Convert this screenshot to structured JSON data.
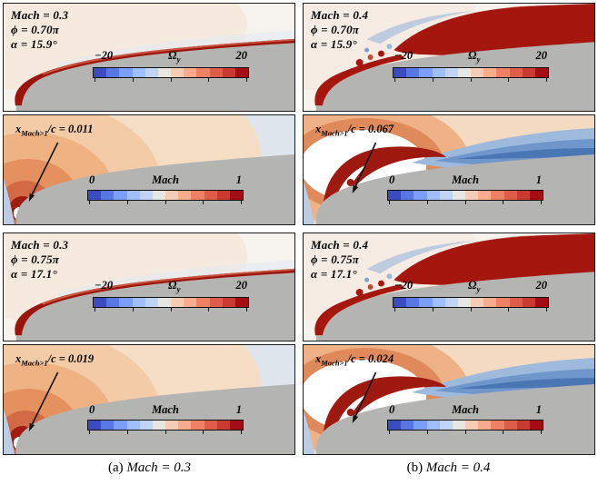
{
  "figure": {
    "captions": [
      {
        "prefix": "(a)",
        "text": "Mach = 0.3"
      },
      {
        "prefix": "(b)",
        "text": "Mach = 0.4"
      }
    ]
  },
  "colormap": [
    "#3b4cc0",
    "#5977e3",
    "#7b9ff9",
    "#9ebeff",
    "#c0d4f5",
    "#e6e7e3",
    "#f5cdb4",
    "#f7ac8e",
    "#ee8165",
    "#dd5c4a",
    "#c93a32",
    "#a50d15"
  ],
  "omega_bar": {
    "min": "−20",
    "symbol": "Ω",
    "subscript": "y",
    "max": "20"
  },
  "mach_bar": {
    "min": "0",
    "label": "Mach",
    "max": "1"
  },
  "panels": [
    {
      "mach_line": "Mach = 0.3",
      "phi_line": "ϕ = 0.70π",
      "alpha_line": "α = 15.9°",
      "annotation": {
        "base": "x",
        "sub": "Mach>1",
        "rest": "/c = 0.011"
      }
    },
    {
      "mach_line": "Mach = 0.4",
      "phi_line": "ϕ = 0.70π",
      "alpha_line": "α = 15.9°",
      "annotation": {
        "base": "x",
        "sub": "Mach>1",
        "rest": "/c = 0.067"
      }
    },
    {
      "mach_line": "Mach = 0.3",
      "phi_line": "ϕ = 0.75π",
      "alpha_line": "α = 17.1°",
      "annotation": {
        "base": "x",
        "sub": "Mach>1",
        "rest": "/c = 0.019"
      }
    },
    {
      "mach_line": "Mach = 0.4",
      "phi_line": "ϕ = 0.75π",
      "alpha_line": "α = 17.1°",
      "annotation": {
        "base": "x",
        "sub": "Mach>1",
        "rest": "/c = 0.024"
      }
    }
  ],
  "chart_data": [
    {
      "type": "heatmap",
      "subtype": "contour-field",
      "panel": "top-left",
      "conditions": {
        "Mach": 0.3,
        "phi": "0.70π",
        "alpha_deg": 15.9
      },
      "fields": [
        {
          "name": "Ω_y",
          "colorbar_min": -20,
          "colorbar_max": 20
        },
        {
          "name": "Mach",
          "colorbar_min": 0,
          "colorbar_max": 1,
          "annotation": "x_Mach>1/c = 0.011",
          "supersonic_extent_x_over_c": 0.011
        }
      ],
      "colormap": "blue-white-red diverging",
      "legend_position": "inside"
    },
    {
      "type": "heatmap",
      "subtype": "contour-field",
      "panel": "top-right",
      "conditions": {
        "Mach": 0.4,
        "phi": "0.70π",
        "alpha_deg": 15.9
      },
      "fields": [
        {
          "name": "Ω_y",
          "colorbar_min": -20,
          "colorbar_max": 20
        },
        {
          "name": "Mach",
          "colorbar_min": 0,
          "colorbar_max": 1,
          "annotation": "x_Mach>1/c = 0.067",
          "supersonic_extent_x_over_c": 0.067
        }
      ],
      "colormap": "blue-white-red diverging",
      "legend_position": "inside"
    },
    {
      "type": "heatmap",
      "subtype": "contour-field",
      "panel": "bottom-left",
      "conditions": {
        "Mach": 0.3,
        "phi": "0.75π",
        "alpha_deg": 17.1
      },
      "fields": [
        {
          "name": "Ω_y",
          "colorbar_min": -20,
          "colorbar_max": 20
        },
        {
          "name": "Mach",
          "colorbar_min": 0,
          "colorbar_max": 1,
          "annotation": "x_Mach>1/c = 0.019",
          "supersonic_extent_x_over_c": 0.019
        }
      ],
      "colormap": "blue-white-red diverging",
      "legend_position": "inside"
    },
    {
      "type": "heatmap",
      "subtype": "contour-field",
      "panel": "bottom-right",
      "conditions": {
        "Mach": 0.4,
        "phi": "0.75π",
        "alpha_deg": 17.1
      },
      "fields": [
        {
          "name": "Ω_y",
          "colorbar_min": -20,
          "colorbar_max": 20
        },
        {
          "name": "Mach",
          "colorbar_min": 0,
          "colorbar_max": 1,
          "annotation": "x_Mach>1/c = 0.024",
          "supersonic_extent_x_over_c": 0.024
        }
      ],
      "colormap": "blue-white-red diverging",
      "legend_position": "inside"
    }
  ]
}
